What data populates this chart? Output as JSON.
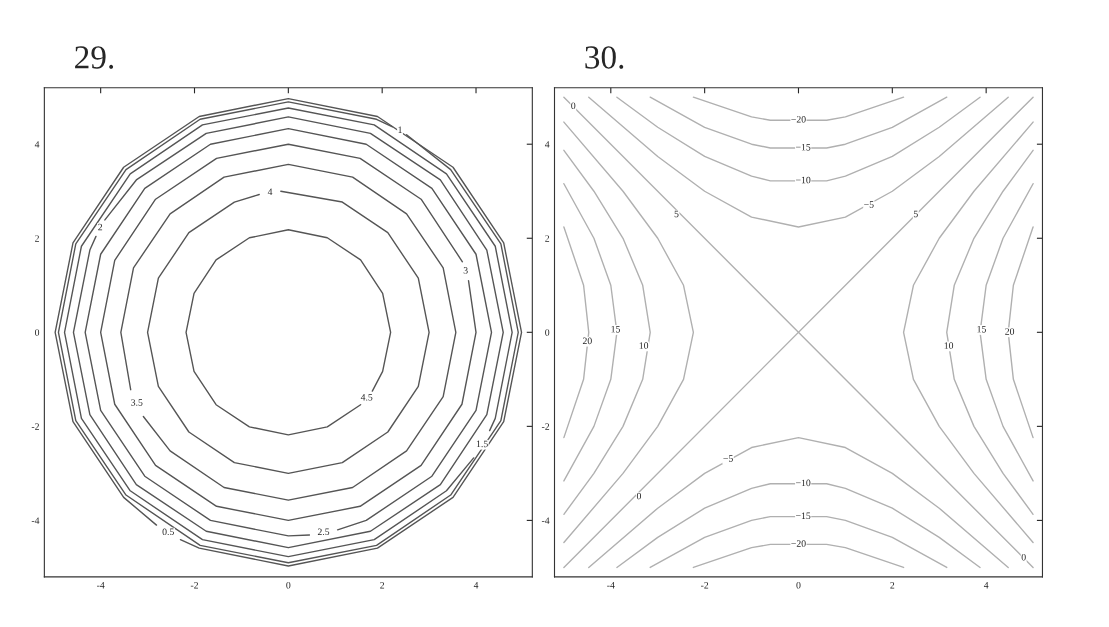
{
  "chart_data": [
    {
      "type": "line",
      "title": "29.",
      "xlim": [
        -5.2,
        5.2
      ],
      "ylim": [
        -5.2,
        5.2
      ],
      "xticks": [
        -4,
        -2,
        0,
        2,
        4
      ],
      "yticks": [
        -4,
        -2,
        0,
        2,
        4
      ],
      "grid": false,
      "series": [
        {
          "color": "#555555",
          "x": [
            1.79,
            2.01,
            2.18,
            2.01,
            1.54,
            0.83,
            0,
            -0.83,
            -1.54,
            -2.01,
            -2.18,
            -2.01,
            -1.54,
            -0.83,
            0,
            0.83,
            1.54
          ],
          "values": [
            -1.25,
            -0.83,
            0,
            0.83,
            1.54,
            2.01,
            2.18,
            2.01,
            1.54,
            0.83,
            0,
            -0.83,
            -1.54,
            -2.01,
            -2.18,
            -2.01,
            -1.54
          ]
        },
        {
          "color": "#555555",
          "x": [
            -0.62,
            -1.15,
            -2.12,
            -2.77,
            -3,
            -2.77,
            -2.12,
            -1.15,
            0,
            1.15,
            2.12,
            2.77,
            3,
            2.77,
            2.12,
            1.15,
            -0.16
          ],
          "values": [
            2.93,
            2.77,
            2.12,
            1.15,
            0,
            -1.15,
            -2.12,
            -2.77,
            -3,
            -2.77,
            -2.12,
            -1.15,
            0,
            1.15,
            2.12,
            2.77,
            3.0
          ]
        },
        {
          "color": "#555555",
          "x": [
            -3.09,
            -2.52,
            -1.37,
            0,
            1.37,
            2.52,
            3.3,
            3.57,
            3.3,
            2.52,
            1.37,
            0,
            -1.37,
            -2.52,
            -3.3,
            -3.57,
            -3.36
          ],
          "values": [
            -1.79,
            -2.52,
            -3.3,
            -3.57,
            -3.3,
            -2.52,
            -1.37,
            0,
            1.37,
            2.52,
            3.3,
            3.57,
            3.3,
            2.52,
            1.37,
            0,
            -1.22
          ]
        },
        {
          "color": "#555555",
          "x": [
            3.71,
            2.83,
            1.53,
            0,
            -1.53,
            -2.83,
            -3.7,
            -4,
            -3.7,
            -2.83,
            -1.53,
            0,
            1.53,
            2.83,
            3.7,
            4,
            3.84
          ],
          "values": [
            1.5,
            2.83,
            3.7,
            4,
            3.7,
            2.83,
            1.53,
            0,
            -1.53,
            -2.83,
            -3.7,
            -4,
            -3.7,
            -2.83,
            -1.53,
            0,
            1.1
          ]
        },
        {
          "color": "#555555",
          "x": [
            1.05,
            1.66,
            3.06,
            4,
            4.33,
            4,
            3.06,
            1.66,
            0,
            -1.66,
            -3.06,
            -4,
            -4.33,
            -4,
            -3.06,
            -1.66,
            0,
            0.45
          ],
          "values": [
            -4.2,
            -4,
            -3.06,
            -1.66,
            0,
            1.66,
            3.06,
            4,
            4.33,
            4,
            3.06,
            1.66,
            0,
            -1.66,
            -3.06,
            -4,
            -4.33,
            -4.31
          ]
        },
        {
          "color": "#555555",
          "x": [
            -4.1,
            -4.23,
            -4.58,
            -4.23,
            -3.24,
            -1.75,
            0,
            1.75,
            3.24,
            4.23,
            4.58,
            4.23,
            3.24,
            1.75,
            0,
            -1.75,
            -3.24,
            -3.91
          ],
          "values": [
            2.04,
            1.75,
            0,
            -1.75,
            -3.24,
            -4.23,
            -4.58,
            -4.23,
            -3.24,
            -1.75,
            0,
            1.75,
            3.24,
            4.23,
            4.58,
            4.23,
            3.24,
            2.39
          ]
        },
        {
          "color": "#555555",
          "x": [
            4.29,
            4.41,
            4.77,
            4.41,
            3.37,
            1.83,
            0,
            -1.83,
            -3.37,
            -4.41,
            -4.77,
            -4.41,
            -3.37,
            -1.83,
            0,
            1.83,
            3.37,
            3.95
          ],
          "values": [
            -2.09,
            -1.83,
            0,
            1.83,
            3.37,
            4.41,
            4.77,
            4.41,
            3.37,
            1.83,
            0,
            -1.83,
            -3.37,
            -4.41,
            -4.77,
            -4.41,
            -3.37,
            -2.67
          ]
        },
        {
          "color": "#555555",
          "x": [
            2.22,
            1.88,
            0,
            -1.88,
            -3.46,
            -4.53,
            -4.9,
            -4.53,
            -3.46,
            -1.88,
            0,
            1.88,
            3.46,
            4.53,
            4.9,
            4.53,
            3.46,
            2.52
          ],
          "values": [
            4.37,
            4.53,
            4.9,
            4.53,
            3.46,
            1.88,
            0,
            -1.88,
            -3.46,
            -4.53,
            -4.9,
            -4.53,
            -3.46,
            -1.88,
            0,
            1.88,
            3.46,
            4.2
          ]
        },
        {
          "color": "#555555",
          "x": [
            -2.3,
            -1.9,
            0,
            1.9,
            3.51,
            4.59,
            4.97,
            4.59,
            3.51,
            1.9,
            0,
            -1.9,
            -3.51,
            -4.59,
            -4.97,
            -4.59,
            -3.51,
            -2.81
          ],
          "values": [
            -4.41,
            -4.59,
            -4.97,
            -4.59,
            -3.51,
            -1.9,
            0,
            1.9,
            3.51,
            4.59,
            4.97,
            4.59,
            3.51,
            1.9,
            0,
            -1.9,
            -3.51,
            -4.1
          ]
        }
      ],
      "annotations": [
        {
          "text": "1",
          "x": 2.38,
          "y": 4.29
        },
        {
          "text": "2",
          "x": -4.01,
          "y": 2.22
        },
        {
          "text": "4",
          "x": -0.39,
          "y": 2.97
        },
        {
          "text": "3",
          "x": 3.78,
          "y": 1.3
        },
        {
          "text": "3.5",
          "x": -3.23,
          "y": -1.51
        },
        {
          "text": "4.5",
          "x": 1.67,
          "y": -1.4
        },
        {
          "text": "1.5",
          "x": 4.13,
          "y": -2.39
        },
        {
          "text": "0.5",
          "x": -2.56,
          "y": -4.26
        },
        {
          "text": "2.5",
          "x": 0.75,
          "y": -4.26
        }
      ]
    },
    {
      "type": "line",
      "title": "30.",
      "xlim": [
        -5.2,
        5.2
      ],
      "ylim": [
        -5.2,
        5.2
      ],
      "xticks": [
        -4,
        -2,
        0,
        2,
        4
      ],
      "yticks": [
        -4,
        -2,
        0,
        2,
        4
      ],
      "grid": false,
      "series": [
        {
          "color": "#b0b0b0",
          "x": [
            -5,
            5
          ],
          "values": [
            -5,
            5
          ]
        },
        {
          "color": "#b0b0b0",
          "x": [
            -5,
            5
          ],
          "values": [
            5,
            -5
          ]
        },
        {
          "color": "#b0b0b0",
          "x": [
            5,
            3.74,
            3,
            2.45,
            2.24,
            2.45,
            3,
            3.74,
            5
          ],
          "values": [
            -4.47,
            -3,
            -2,
            -1,
            0,
            1,
            2,
            3,
            4.47
          ]
        },
        {
          "color": "#b0b0b0",
          "x": [
            -5,
            -3.74,
            -3,
            -2.45,
            -2.24,
            -2.45,
            -3,
            -3.74,
            -5
          ],
          "values": [
            -4.47,
            -3,
            -2,
            -1,
            0,
            1,
            2,
            3,
            4.47
          ]
        },
        {
          "color": "#b0b0b0",
          "x": [
            5,
            4.36,
            3.74,
            3.32,
            3.16,
            3.32,
            3.74,
            4.36,
            5
          ],
          "values": [
            -3.87,
            -3,
            -2,
            -1,
            0,
            1,
            2,
            3,
            3.87
          ]
        },
        {
          "color": "#b0b0b0",
          "x": [
            -5,
            -4.36,
            -3.74,
            -3.32,
            -3.16,
            -3.32,
            -3.74,
            -4.36,
            -5
          ],
          "values": [
            -3.87,
            -3,
            -2,
            -1,
            0,
            1,
            2,
            3,
            3.87
          ]
        },
        {
          "color": "#b0b0b0",
          "x": [
            5,
            4.36,
            4,
            3.87,
            4,
            4.36,
            5
          ],
          "values": [
            -3.16,
            -2,
            -1,
            0,
            1,
            2,
            3.16
          ]
        },
        {
          "color": "#b0b0b0",
          "x": [
            -5,
            -4.36,
            -4,
            -3.87,
            -4,
            -4.36,
            -5
          ],
          "values": [
            -3.16,
            -2,
            -1,
            0,
            1,
            2,
            3.16
          ]
        },
        {
          "color": "#b0b0b0",
          "x": [
            5,
            4.58,
            4.47,
            4.58,
            5
          ],
          "values": [
            -2.24,
            -1,
            0,
            1,
            2.24
          ]
        },
        {
          "color": "#b0b0b0",
          "x": [
            -5,
            -4.58,
            -4.47,
            -4.58,
            -5
          ],
          "values": [
            -2.24,
            -1,
            0,
            1,
            2.24
          ]
        },
        {
          "color": "#b0b0b0",
          "x": [
            -4.47,
            -3,
            -2,
            -1,
            0,
            1,
            2,
            3,
            4.47
          ],
          "values": [
            5,
            3.74,
            3,
            2.45,
            2.24,
            2.45,
            3,
            3.74,
            5
          ]
        },
        {
          "color": "#b0b0b0",
          "x": [
            -4.47,
            -3,
            -2,
            -1,
            0,
            1,
            2,
            3,
            4.47
          ],
          "values": [
            -5,
            -3.74,
            -3,
            -2.45,
            -2.24,
            -2.45,
            -3,
            -3.74,
            -5
          ]
        },
        {
          "color": "#b0b0b0",
          "x": [
            -3.87,
            -3,
            -2,
            -1,
            -0.6,
            0.6,
            1,
            2,
            3,
            3.87
          ],
          "values": [
            5,
            4.36,
            3.74,
            3.32,
            3.22,
            3.22,
            3.32,
            3.74,
            4.36,
            5
          ]
        },
        {
          "color": "#b0b0b0",
          "x": [
            -3.87,
            -3,
            -2,
            -1,
            -0.6,
            0.6,
            1,
            2,
            3,
            3.87
          ],
          "values": [
            -5,
            -4.36,
            -3.74,
            -3.32,
            -3.22,
            -3.22,
            -3.32,
            -3.74,
            -4.36,
            -5
          ]
        },
        {
          "color": "#b0b0b0",
          "x": [
            -3.16,
            -2,
            -1,
            -0.6,
            0.6,
            1,
            2,
            3.16
          ],
          "values": [
            5,
            4.36,
            4,
            3.92,
            3.92,
            4,
            4.36,
            5
          ]
        },
        {
          "color": "#b0b0b0",
          "x": [
            -3.16,
            -2,
            -1,
            -0.6,
            0.6,
            1,
            2,
            3.16
          ],
          "values": [
            -5,
            -4.36,
            -4,
            -3.92,
            -3.92,
            -4,
            -4.36,
            -5
          ]
        },
        {
          "color": "#b0b0b0",
          "x": [
            -2.24,
            -1,
            -0.6,
            0.6,
            1,
            2.24
          ],
          "values": [
            5,
            4.58,
            4.51,
            4.51,
            4.58,
            5
          ]
        },
        {
          "color": "#b0b0b0",
          "x": [
            -2.24,
            -1,
            -0.6,
            0.6,
            1,
            2.24
          ],
          "values": [
            -5,
            -4.58,
            -4.51,
            -4.51,
            -4.58,
            -5
          ]
        }
      ],
      "annotations": [
        {
          "text": "0",
          "x": -4.8,
          "y": 4.8
        },
        {
          "text": "−20",
          "x": 0,
          "y": 4.51
        },
        {
          "text": "−15",
          "x": 0.1,
          "y": 3.92
        },
        {
          "text": "−10",
          "x": 0.1,
          "y": 3.22
        },
        {
          "text": "−5",
          "x": 1.5,
          "y": 2.7
        },
        {
          "text": "5",
          "x": -2.6,
          "y": 2.5
        },
        {
          "text": "5",
          "x": 2.5,
          "y": 2.5
        },
        {
          "text": "20",
          "x": -4.5,
          "y": -0.2
        },
        {
          "text": "15",
          "x": -3.9,
          "y": 0.05
        },
        {
          "text": "10",
          "x": -3.3,
          "y": -0.3
        },
        {
          "text": "10",
          "x": 3.2,
          "y": -0.3
        },
        {
          "text": "15",
          "x": 3.9,
          "y": 0.05
        },
        {
          "text": "20",
          "x": 4.5,
          "y": 0
        },
        {
          "text": "−5",
          "x": -1.5,
          "y": -2.7
        },
        {
          "text": "0",
          "x": -3.4,
          "y": -3.5
        },
        {
          "text": "−10",
          "x": 0.1,
          "y": -3.22
        },
        {
          "text": "−15",
          "x": 0.1,
          "y": -3.92
        },
        {
          "text": "−20",
          "x": 0,
          "y": -4.51
        },
        {
          "text": "0",
          "x": 4.8,
          "y": -4.8
        }
      ]
    }
  ]
}
